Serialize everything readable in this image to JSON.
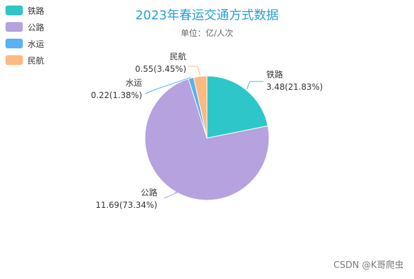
{
  "chart_data": {
    "type": "pie",
    "title": "2023年春运交通方式数据",
    "subtitle": "单位：亿/人次",
    "categories": [
      "铁路",
      "公路",
      "水运",
      "民航"
    ],
    "values": [
      3.48,
      11.69,
      0.22,
      0.55
    ],
    "percent_labels": [
      "21.83%",
      "73.34%",
      "1.38%",
      "3.45%"
    ],
    "colors": [
      "#2ec7c9",
      "#b6a2de",
      "#5ab1ef",
      "#ffb980"
    ],
    "legend_position": "top-left",
    "start_angle": "12 o'clock",
    "direction": "clockwise"
  },
  "watermark": "CSDN @K哥爬虫"
}
